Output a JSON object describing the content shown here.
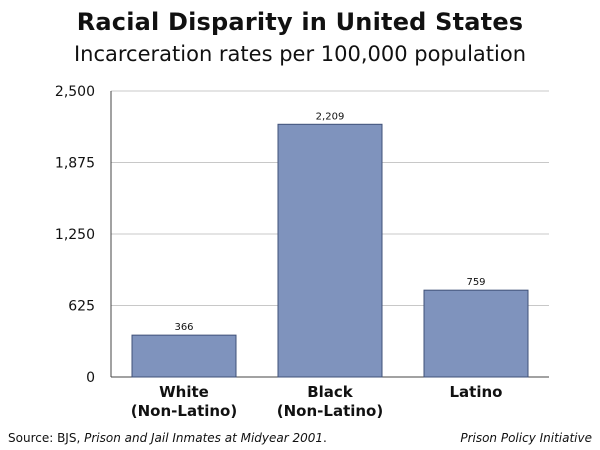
{
  "colors": {
    "bar_fill": "#7f93bd",
    "bar_stroke": "#3f5078",
    "grid": "#c8c8c8",
    "axis": "#444444"
  },
  "chart_data": {
    "type": "bar",
    "title": "Racial Disparity in United States",
    "subtitle": "Incarceration rates per 100,000 population",
    "categories": [
      "White\n(Non-Latino)",
      "Black\n(Non-Latino)",
      "Latino"
    ],
    "values": [
      366,
      2209,
      759
    ],
    "value_labels": [
      "366",
      "2,209",
      "759"
    ],
    "ylim": [
      0,
      2500
    ],
    "yticks": [
      0,
      625,
      1250,
      1875,
      2500
    ],
    "ytick_labels": [
      "0",
      "625",
      "1,250",
      "1,875",
      "2,500"
    ],
    "grid": true,
    "legend": "none"
  },
  "footer": {
    "source_prefix": "Source: BJS, ",
    "source_title": "Prison and Jail Inmates at Midyear 2001",
    "source_suffix": ".",
    "org": "Prison Policy Initiative"
  }
}
